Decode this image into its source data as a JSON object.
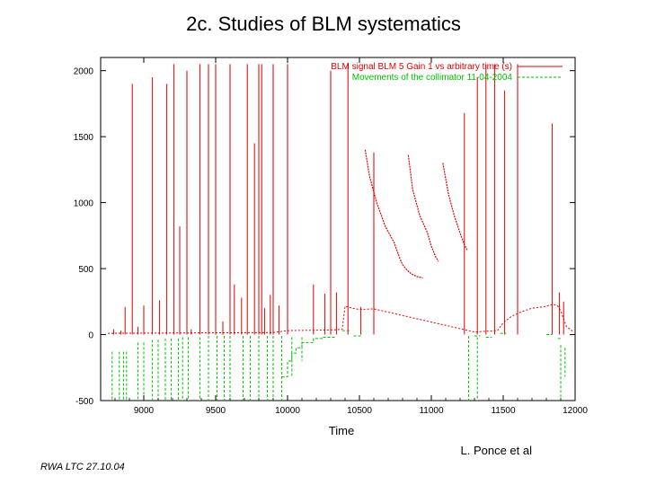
{
  "slide": {
    "title": "2c. Studies of BLM systematics",
    "author": "L. Ponce et al",
    "footer": "RWA LTC 27.10.04"
  },
  "colors": {
    "blm": "#e00000",
    "collimator": "#00c000",
    "axes": "#000000"
  },
  "chart_data": {
    "type": "line",
    "title": "",
    "xlabel": "Time",
    "ylabel": "",
    "xlim": [
      8700,
      12000
    ],
    "ylim": [
      -500,
      2100
    ],
    "xticks": [
      9000,
      9500,
      10000,
      10500,
      11000,
      11500,
      12000
    ],
    "yticks": [
      -500,
      0,
      500,
      1000,
      1500,
      2000
    ],
    "legend_position": "top-right",
    "series": [
      {
        "name": "BLM signal BLM 5 Gain 1 vs arbitrary time (s)",
        "style": "line",
        "baseline": [
          [
            8750,
            10
          ],
          [
            9900,
            15
          ],
          [
            10000,
            30
          ],
          [
            10300,
            35
          ],
          [
            10380,
            40
          ],
          [
            10400,
            215
          ],
          [
            10450,
            200
          ],
          [
            10500,
            190
          ],
          [
            10600,
            195
          ],
          [
            11300,
            20
          ],
          [
            11460,
            30
          ],
          [
            11500,
            90
          ],
          [
            11560,
            140
          ],
          [
            11620,
            170
          ],
          [
            11700,
            200
          ],
          [
            11780,
            210
          ],
          [
            11850,
            230
          ],
          [
            11880,
            215
          ],
          [
            11900,
            180
          ],
          [
            11940,
            60
          ],
          [
            11990,
            20
          ]
        ],
        "decays": [
          [
            [
              10540,
              1400
            ],
            [
              10570,
              1200
            ],
            [
              10620,
              1000
            ],
            [
              10680,
              820
            ],
            [
              10740,
              700
            ],
            [
              10780,
              580
            ],
            [
              10800,
              530
            ],
            [
              10830,
              490
            ],
            [
              10860,
              460
            ],
            [
              10900,
              440
            ],
            [
              10940,
              430
            ]
          ],
          [
            [
              10840,
              1360
            ],
            [
              10870,
              1100
            ],
            [
              10920,
              900
            ],
            [
              10970,
              780
            ],
            [
              11000,
              670
            ],
            [
              11030,
              590
            ],
            [
              11050,
              555
            ]
          ],
          [
            [
              11080,
              1300
            ],
            [
              11120,
              1060
            ],
            [
              11160,
              900
            ],
            [
              11200,
              770
            ],
            [
              11230,
              680
            ],
            [
              11250,
              640
            ]
          ]
        ],
        "spikes": [
          [
            8790,
            40
          ],
          [
            8840,
            30
          ],
          [
            8870,
            210
          ],
          [
            8920,
            1900
          ],
          [
            8960,
            60
          ],
          [
            9000,
            220
          ],
          [
            9060,
            1950
          ],
          [
            9110,
            260
          ],
          [
            9160,
            1900
          ],
          [
            9210,
            2050
          ],
          [
            9250,
            820
          ],
          [
            9300,
            2000
          ],
          [
            9330,
            40
          ],
          [
            9390,
            2050
          ],
          [
            9450,
            2050
          ],
          [
            9500,
            2050
          ],
          [
            9550,
            100
          ],
          [
            9600,
            2050
          ],
          [
            9630,
            380
          ],
          [
            9680,
            280
          ],
          [
            9720,
            2050
          ],
          [
            9770,
            1450
          ],
          [
            9800,
            2050
          ],
          [
            9820,
            2050
          ],
          [
            9840,
            200
          ],
          [
            9880,
            300
          ],
          [
            9900,
            2050
          ],
          [
            9940,
            220
          ],
          [
            10000,
            2050
          ],
          [
            10180,
            380
          ],
          [
            10260,
            310
          ],
          [
            10300,
            2000
          ],
          [
            10340,
            320
          ],
          [
            10420,
            2050
          ],
          [
            10510,
            210
          ],
          [
            10600,
            1380
          ],
          [
            11230,
            1680
          ],
          [
            11320,
            1950
          ],
          [
            11380,
            2050
          ],
          [
            11440,
            2050
          ],
          [
            11510,
            1850
          ],
          [
            11600,
            2050
          ],
          [
            11840,
            1600
          ],
          [
            11890,
            320
          ],
          [
            11920,
            250
          ]
        ]
      },
      {
        "name": "Movements of the collimator 11-04-2004",
        "style": "dashed",
        "lines": [
          [
            [
              8780,
              -130
            ],
            [
              8780,
              -500
            ]
          ],
          [
            [
              8830,
              -130
            ],
            [
              8830,
              -500
            ]
          ],
          [
            [
              8860,
              -130
            ],
            [
              8860,
              -500
            ]
          ],
          [
            [
              8880,
              -130
            ],
            [
              8880,
              -500
            ]
          ],
          [
            [
              8960,
              -60
            ],
            [
              8960,
              -500
            ]
          ],
          [
            [
              9000,
              -60
            ],
            [
              9000,
              -500
            ]
          ],
          [
            [
              9060,
              -40
            ],
            [
              9060,
              -500
            ]
          ],
          [
            [
              9100,
              -40
            ],
            [
              9100,
              -500
            ]
          ],
          [
            [
              9150,
              -30
            ],
            [
              9150,
              -500
            ]
          ],
          [
            [
              9190,
              -30
            ],
            [
              9190,
              -500
            ]
          ],
          [
            [
              9240,
              -30
            ],
            [
              9240,
              -500
            ]
          ],
          [
            [
              9270,
              -20
            ],
            [
              9270,
              -500
            ]
          ],
          [
            [
              9310,
              -20
            ],
            [
              9310,
              -500
            ]
          ],
          [
            [
              9390,
              -20
            ],
            [
              9390,
              -500
            ]
          ],
          [
            [
              9450,
              -10
            ],
            [
              9450,
              -500
            ]
          ],
          [
            [
              9510,
              -10
            ],
            [
              9510,
              -500
            ]
          ],
          [
            [
              9560,
              -10
            ],
            [
              9560,
              -500
            ]
          ],
          [
            [
              9600,
              -10
            ],
            [
              9600,
              -500
            ]
          ],
          [
            [
              9690,
              -10
            ],
            [
              9690,
              -500
            ]
          ],
          [
            [
              9740,
              -10
            ],
            [
              9740,
              -500
            ]
          ],
          [
            [
              9800,
              -10
            ],
            [
              9800,
              -500
            ]
          ],
          [
            [
              9860,
              -10
            ],
            [
              9860,
              -500
            ]
          ],
          [
            [
              9900,
              -10
            ],
            [
              9900,
              -500
            ]
          ],
          [
            [
              9960,
              -10
            ],
            [
              9960,
              -500
            ]
          ],
          [
            [
              10030,
              -20
            ],
            [
              10030,
              -320
            ]
          ],
          [
            [
              10100,
              -20
            ],
            [
              10100,
              -200
            ]
          ],
          [
            [
              11260,
              -10
            ],
            [
              11260,
              -500
            ]
          ],
          [
            [
              11320,
              -20
            ],
            [
              11320,
              -500
            ]
          ],
          [
            [
              11900,
              -80
            ],
            [
              11900,
              -500
            ]
          ],
          [
            [
              11930,
              -100
            ],
            [
              11930,
              -320
            ]
          ],
          [
            [
              9960,
              -320
            ],
            [
              10000,
              -320
            ],
            [
              10000,
              -200
            ],
            [
              10030,
              -200
            ],
            [
              10030,
              -140
            ],
            [
              10060,
              -140
            ],
            [
              10060,
              -100
            ],
            [
              10100,
              -100
            ],
            [
              10100,
              -60
            ],
            [
              10180,
              -60
            ],
            [
              10180,
              -30
            ],
            [
              10250,
              -30
            ],
            [
              10250,
              -20
            ],
            [
              10340,
              -20
            ]
          ],
          [
            [
              10380,
              30
            ],
            [
              10440,
              30
            ]
          ],
          [
            [
              10460,
              -10
            ],
            [
              10520,
              -10
            ]
          ],
          [
            [
              11300,
              -10
            ],
            [
              11340,
              -10
            ]
          ],
          [
            [
              11380,
              -20
            ],
            [
              11420,
              -20
            ]
          ],
          [
            [
              11480,
              10
            ],
            [
              11520,
              10
            ]
          ],
          [
            [
              11800,
              0
            ],
            [
              11840,
              0
            ]
          ],
          [
            [
              11880,
              -30
            ],
            [
              11900,
              -30
            ]
          ]
        ]
      }
    ]
  }
}
